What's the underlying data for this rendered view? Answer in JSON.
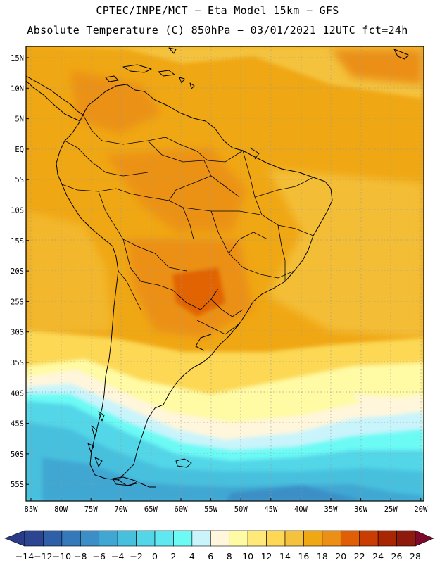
{
  "title": {
    "line1": "CPTEC/INPE/MCT −  Eta Model 15km − GFS",
    "line2": "Absolute Temperature (C) 850hPa − 03/01/2021 12UTC fct=24h"
  },
  "map": {
    "lat_labels": [
      "15N",
      "10N",
      "5N",
      "EQ",
      "5S",
      "10S",
      "15S",
      "20S",
      "25S",
      "30S",
      "35S",
      "40S",
      "45S",
      "50S",
      "55S"
    ],
    "lon_labels": [
      "85W",
      "80W",
      "75W",
      "70W",
      "65W",
      "60W",
      "55W",
      "50W",
      "45W",
      "40W",
      "35W",
      "30W",
      "25W",
      "20W"
    ]
  },
  "colorbar": {
    "labels": [
      "-14",
      "-12",
      "-10",
      "-8",
      "-6",
      "-4",
      "-2",
      "0",
      "2",
      "4",
      "6",
      "8",
      "10",
      "12",
      "14",
      "16",
      "18",
      "20",
      "22",
      "24",
      "26",
      "28"
    ],
    "colors": [
      "#2b4593",
      "#2f5fa8",
      "#3579ba",
      "#3b8fc6",
      "#3fa7d2",
      "#47c0de",
      "#52d6e8",
      "#5fe8f0",
      "#6cfaf5",
      "#c9f4fb",
      "#fff6dc",
      "#fffaa4",
      "#ffe978",
      "#fcd855",
      "#f4c23d",
      "#f0a714",
      "#eb8f15",
      "#e05e06",
      "#c93d03",
      "#a92603",
      "#8d1a0c"
    ],
    "under_color": "#2a3b87",
    "over_color": "#7e0a2b"
  }
}
